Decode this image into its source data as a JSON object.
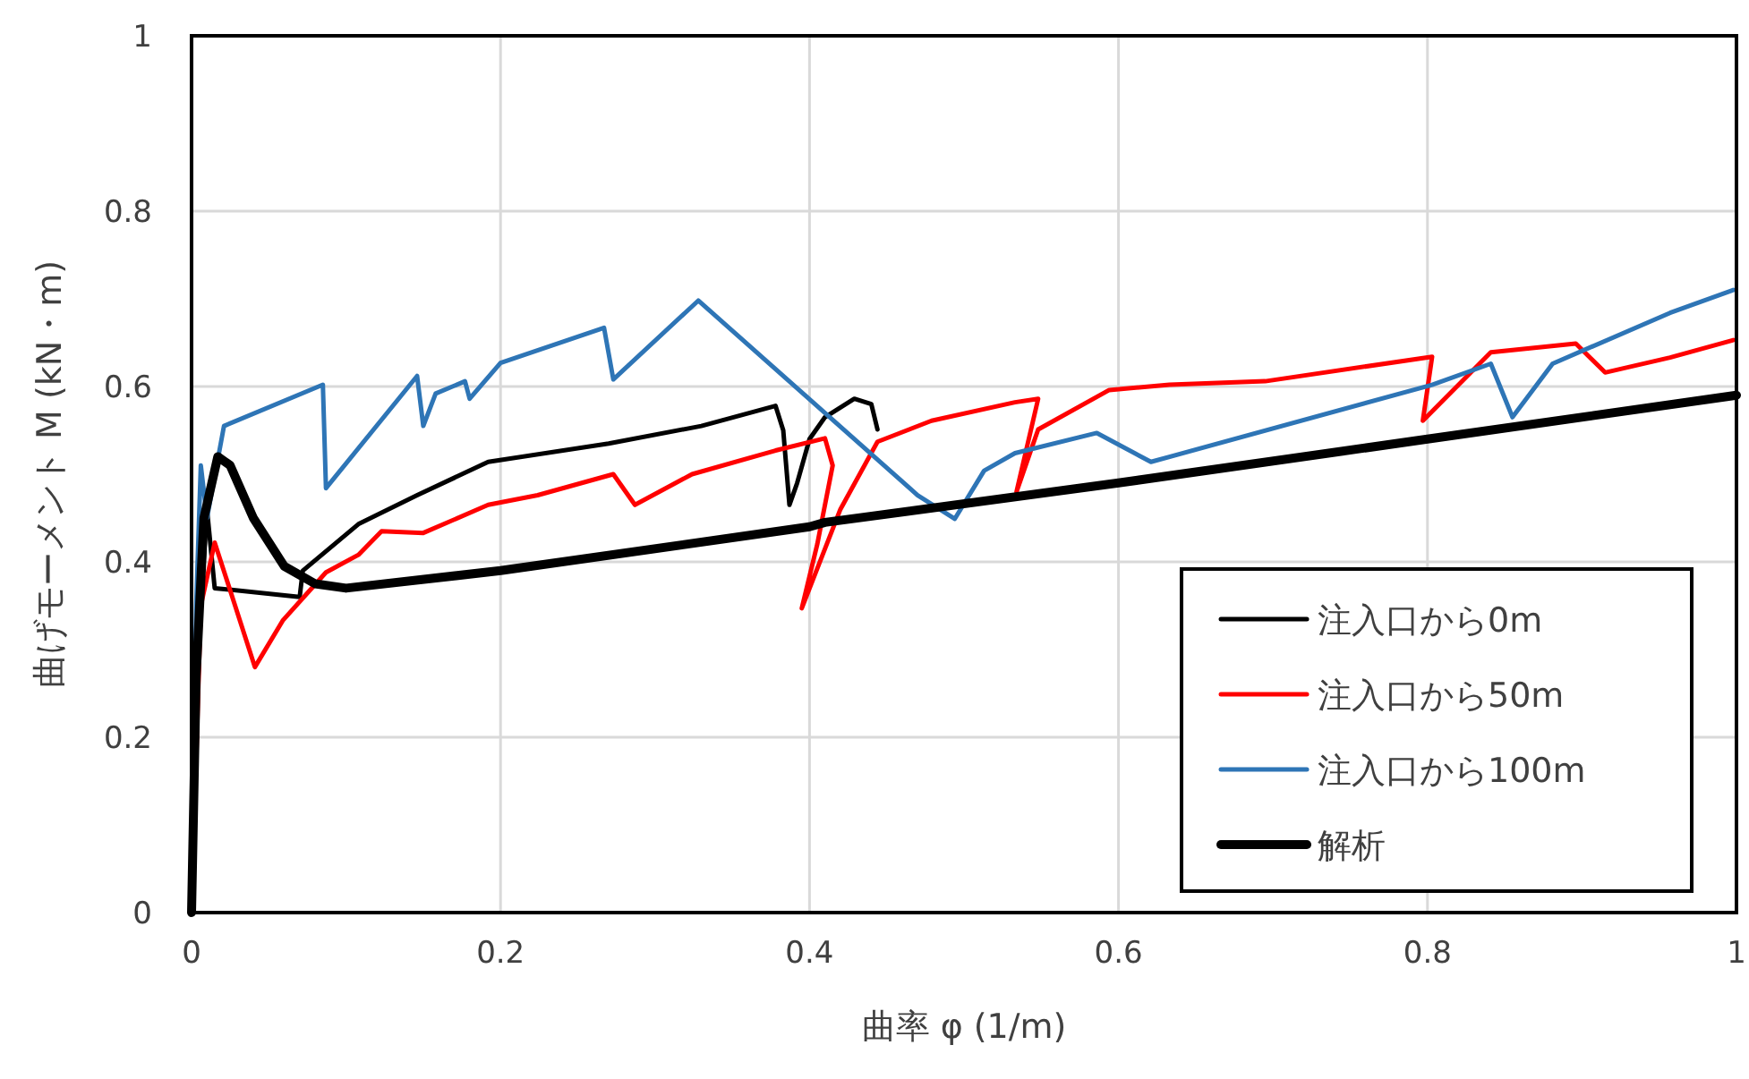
{
  "chart_data": {
    "type": "line",
    "xlabel": "曲率 φ (1/m)",
    "ylabel": "曲げモーメント M (kN・m)",
    "xlim": [
      0,
      1
    ],
    "ylim": [
      0,
      1
    ],
    "xticks": [
      0,
      0.2,
      0.4,
      0.6,
      0.8,
      1
    ],
    "yticks": [
      0,
      0.2,
      0.4,
      0.6,
      0.8,
      1
    ],
    "grid": true,
    "legend": "bottom right",
    "line_style": "solid",
    "marker": "none",
    "series": [
      {
        "name": "注入口から0m",
        "color": "#000000",
        "x": [
          0,
          0.004,
          0.01,
          0.015,
          0.07,
          0.072,
          0.108,
          0.146,
          0.192,
          0.27,
          0.33,
          0.378,
          0.383,
          0.387,
          0.392,
          0.4,
          0.41,
          0.429,
          0.44,
          0.444
        ],
        "values": [
          0,
          0.3,
          0.46,
          0.37,
          0.36,
          0.39,
          0.443,
          0.476,
          0.514,
          0.535,
          0.555,
          0.578,
          0.55,
          0.465,
          0.49,
          0.54,
          0.565,
          0.586,
          0.58,
          0.551
        ]
      },
      {
        "name": "注入口から50m",
        "color": "#ff0000",
        "x": [
          0,
          0.006,
          0.015,
          0.041,
          0.059,
          0.087,
          0.108,
          0.123,
          0.15,
          0.192,
          0.224,
          0.273,
          0.287,
          0.324,
          0.378,
          0.41,
          0.415,
          0.405,
          0.395,
          0.42,
          0.444,
          0.479,
          0.533,
          0.548,
          0.534,
          0.548,
          0.594,
          0.633,
          0.695,
          0.803,
          0.797,
          0.841,
          0.896,
          0.915,
          0.957,
          0.998
        ],
        "values": [
          0,
          0.35,
          0.422,
          0.28,
          0.333,
          0.388,
          0.408,
          0.435,
          0.433,
          0.465,
          0.476,
          0.5,
          0.465,
          0.5,
          0.527,
          0.541,
          0.51,
          0.42,
          0.347,
          0.46,
          0.537,
          0.561,
          0.582,
          0.586,
          0.48,
          0.551,
          0.596,
          0.602,
          0.606,
          0.634,
          0.561,
          0.639,
          0.649,
          0.616,
          0.633,
          0.653
        ]
      },
      {
        "name": "注入口から100m",
        "color": "#2e75b6",
        "x": [
          0,
          0.003,
          0.006,
          0.01,
          0.021,
          0.085,
          0.087,
          0.146,
          0.15,
          0.158,
          0.177,
          0.18,
          0.2,
          0.267,
          0.273,
          0.328,
          0.47,
          0.494,
          0.513,
          0.533,
          0.586,
          0.621,
          0.803,
          0.841,
          0.855,
          0.881,
          0.957,
          0.998
        ],
        "values": [
          0,
          0.35,
          0.51,
          0.45,
          0.555,
          0.602,
          0.484,
          0.612,
          0.555,
          0.592,
          0.606,
          0.586,
          0.627,
          0.667,
          0.608,
          0.698,
          0.476,
          0.449,
          0.504,
          0.524,
          0.547,
          0.514,
          0.602,
          0.626,
          0.565,
          0.626,
          0.684,
          0.71
        ]
      },
      {
        "name": "解析",
        "color": "#000000",
        "x": [
          0,
          0.003,
          0.008,
          0.017,
          0.025,
          0.04,
          0.06,
          0.08,
          0.1,
          0.2,
          0.4,
          0.41,
          0.6,
          0.8,
          1
        ],
        "values": [
          0,
          0.27,
          0.45,
          0.52,
          0.51,
          0.45,
          0.395,
          0.375,
          0.37,
          0.39,
          0.44,
          0.445,
          0.49,
          0.54,
          0.59
        ]
      }
    ]
  }
}
